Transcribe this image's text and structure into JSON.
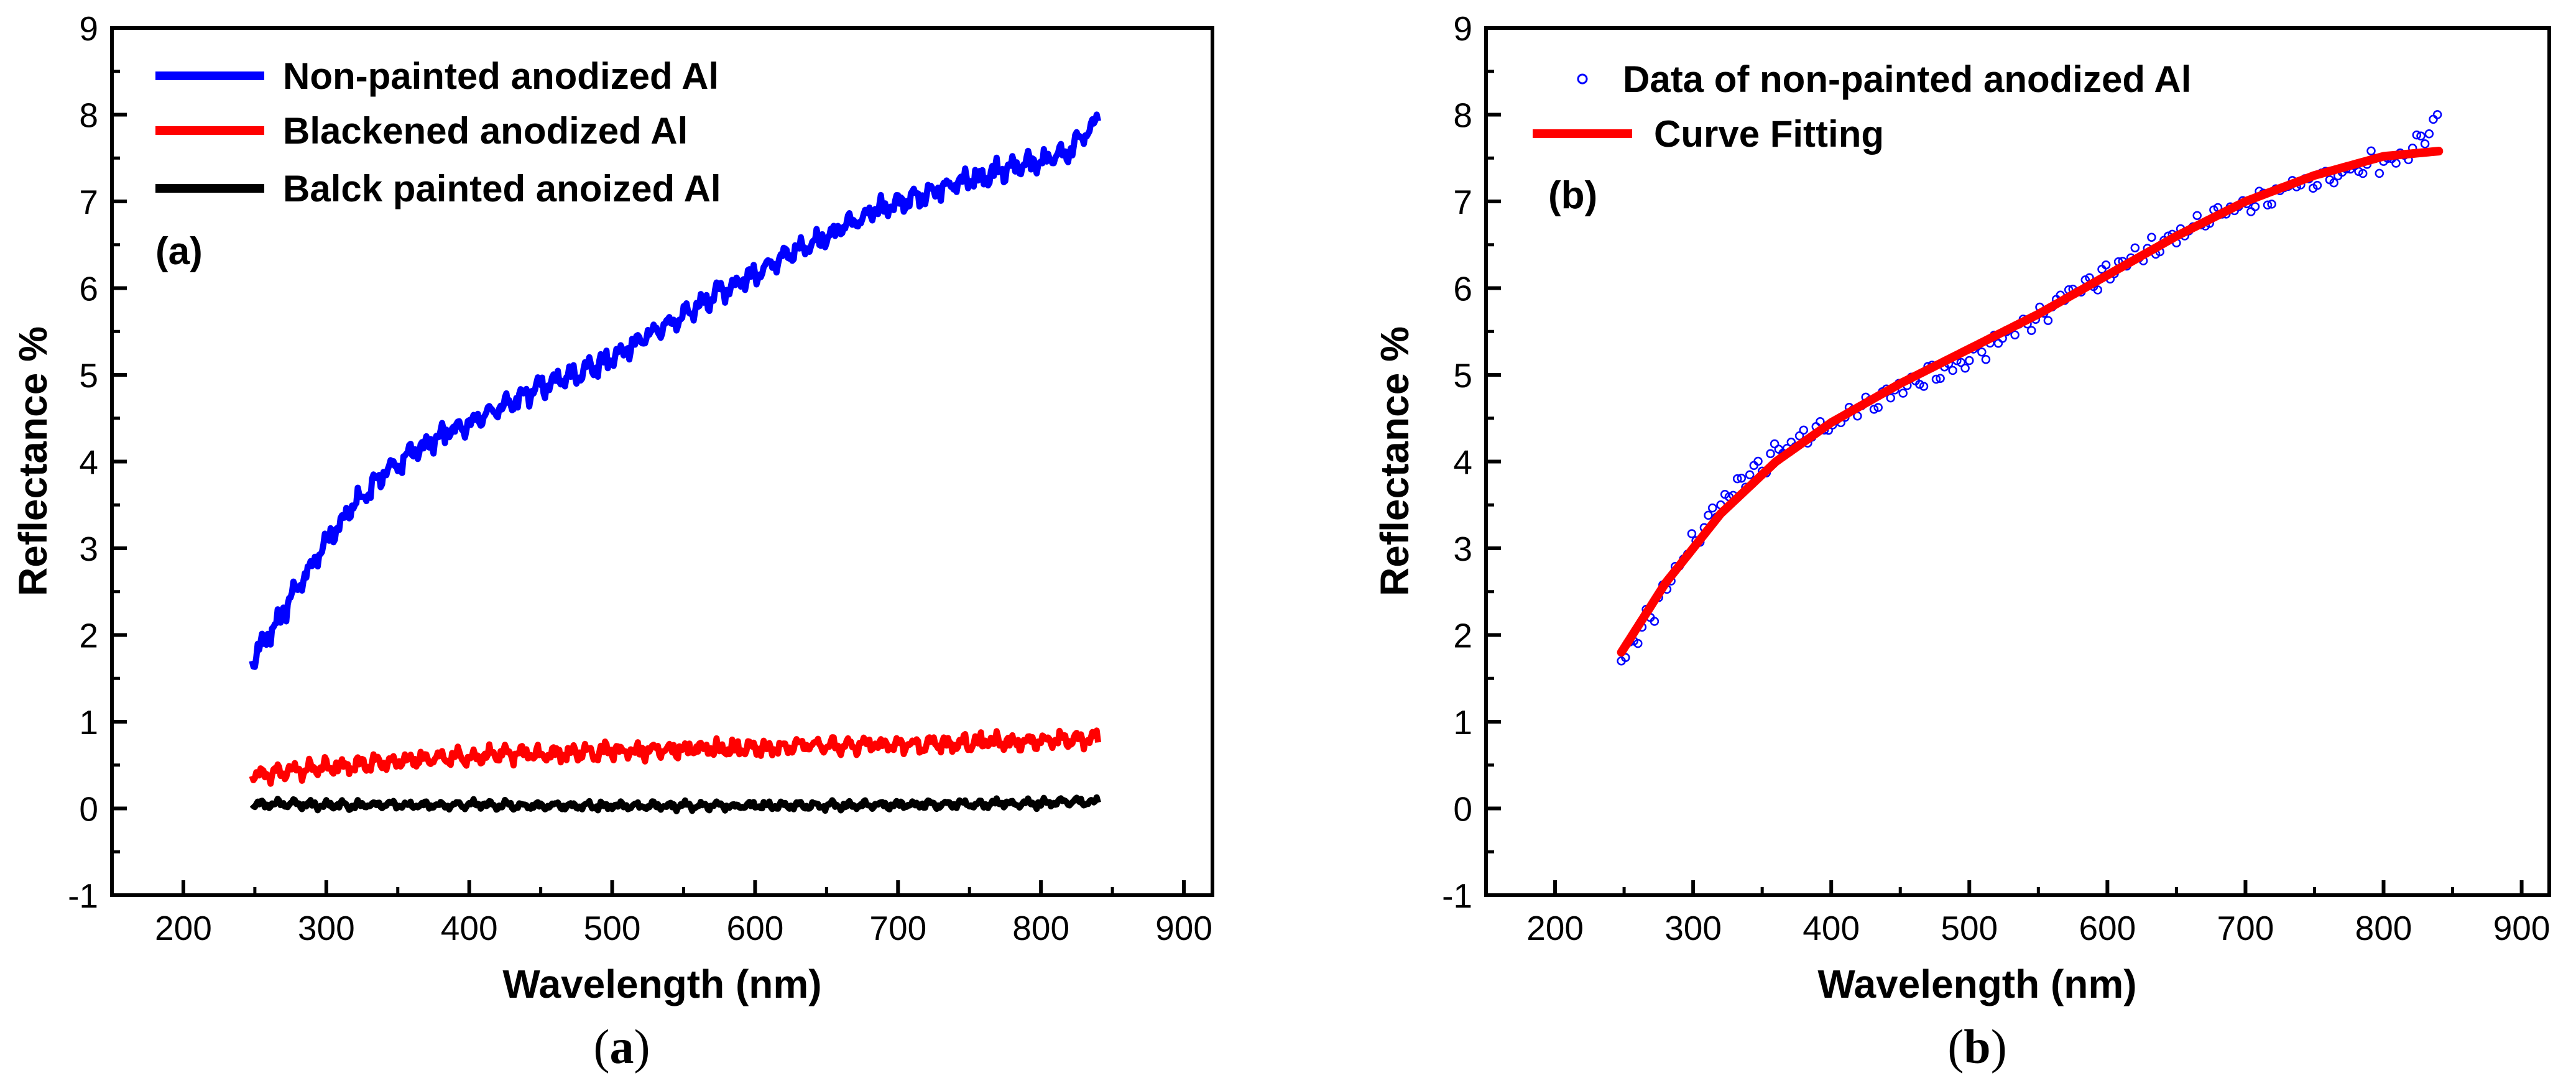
{
  "colors": {
    "non_painted": "#0000ff",
    "blackened": "#ff0000",
    "black_painted": "#000000",
    "fit": "#ff0000",
    "data_points": "#0000ff",
    "axis": "#000000"
  },
  "chart_data": [
    {
      "id": "a",
      "type": "line",
      "panel_label": "(a)",
      "caption_letter": "a",
      "xlabel": "Wavelength (nm)",
      "ylabel": "Reflectance %",
      "xlim": [
        150,
        920
      ],
      "ylim": [
        -1,
        9
      ],
      "xticks": [
        200,
        300,
        400,
        500,
        600,
        700,
        800,
        900
      ],
      "yticks": [
        -1,
        0,
        1,
        2,
        3,
        4,
        5,
        6,
        7,
        8,
        9
      ],
      "legend_position": "top-left",
      "series": [
        {
          "name": "Non-painted anodized Al",
          "color": "#0000ff",
          "x": [
            248,
            260,
            275,
            290,
            300,
            320,
            340,
            360,
            380,
            400,
            420,
            450,
            480,
            500,
            520,
            550,
            580,
            600,
            620,
            650,
            680,
            700,
            720,
            750,
            780,
            800,
            820,
            840
          ],
          "y": [
            1.7,
            2.0,
            2.4,
            2.8,
            3.1,
            3.5,
            3.85,
            4.1,
            4.3,
            4.45,
            4.6,
            4.85,
            5.05,
            5.2,
            5.4,
            5.7,
            6.0,
            6.15,
            6.35,
            6.6,
            6.85,
            7.0,
            7.1,
            7.25,
            7.4,
            7.45,
            7.6,
            7.9
          ],
          "noise": 0.13
        },
        {
          "name": "Blackened anodized Al",
          "color": "#ff0000",
          "x": [
            248,
            300,
            350,
            400,
            450,
            500,
            550,
            600,
            650,
            700,
            750,
            800,
            840
          ],
          "y": [
            0.38,
            0.48,
            0.55,
            0.6,
            0.63,
            0.66,
            0.68,
            0.7,
            0.72,
            0.74,
            0.75,
            0.78,
            0.8
          ],
          "noise": 0.1
        },
        {
          "name": "Balck painted anoized Al",
          "color": "#000000",
          "x": [
            248,
            300,
            400,
            500,
            600,
            700,
            800,
            840
          ],
          "y": [
            0.05,
            0.04,
            0.04,
            0.03,
            0.03,
            0.04,
            0.06,
            0.08
          ],
          "noise": 0.05
        }
      ]
    },
    {
      "id": "b",
      "type": "scatter",
      "panel_label": "(b)",
      "caption_letter": "b",
      "xlabel": "Wavelength (nm)",
      "ylabel": "Reflectance %",
      "xlim": [
        150,
        920
      ],
      "ylim": [
        -1,
        9
      ],
      "xticks": [
        200,
        300,
        400,
        500,
        600,
        700,
        800,
        900
      ],
      "yticks": [
        -1,
        0,
        1,
        2,
        3,
        4,
        5,
        6,
        7,
        8,
        9
      ],
      "legend_position": "top-left",
      "series": [
        {
          "name": "Data of non-painted  anodized Al",
          "kind": "points",
          "color": "#0000ff",
          "x": [
            248,
            260,
            275,
            290,
            300,
            320,
            340,
            360,
            380,
            400,
            420,
            450,
            480,
            500,
            520,
            550,
            580,
            600,
            620,
            650,
            680,
            700,
            720,
            750,
            780,
            800,
            820,
            840
          ],
          "y": [
            1.7,
            2.0,
            2.4,
            2.8,
            3.1,
            3.5,
            3.85,
            4.1,
            4.3,
            4.45,
            4.6,
            4.85,
            5.05,
            5.2,
            5.4,
            5.7,
            6.0,
            6.15,
            6.35,
            6.6,
            6.85,
            7.0,
            7.1,
            7.25,
            7.4,
            7.45,
            7.6,
            7.9
          ],
          "noise": 0.13,
          "sample_step": 3
        },
        {
          "name": "Curve Fitting",
          "kind": "line",
          "color": "#ff0000",
          "x": [
            248,
            280,
            320,
            360,
            400,
            450,
            500,
            550,
            600,
            650,
            700,
            750,
            800,
            840
          ],
          "y": [
            1.8,
            2.6,
            3.4,
            4.0,
            4.45,
            4.9,
            5.3,
            5.7,
            6.15,
            6.6,
            7.0,
            7.3,
            7.52,
            7.58
          ]
        }
      ]
    }
  ]
}
